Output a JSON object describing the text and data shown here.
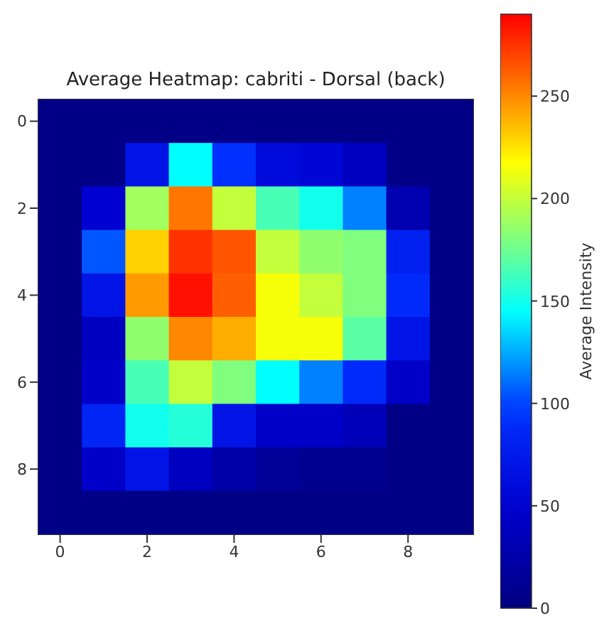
{
  "chart_data": {
    "type": "heatmap",
    "title": "Average Heatmap: cabriti - Dorsal (back)",
    "clabel": "Average Intensity",
    "categories": [
      "0",
      null,
      "2",
      null,
      "4",
      null,
      "6",
      null,
      "8",
      null
    ],
    "y_categories": [
      "0",
      null,
      "2",
      null,
      "4",
      null,
      "6",
      null,
      "8",
      null
    ],
    "cells": [
      [
        5,
        5,
        5,
        5,
        5,
        5,
        5,
        5,
        5,
        5
      ],
      [
        5,
        5,
        70,
        145,
        95,
        60,
        55,
        40,
        5,
        5
      ],
      [
        5,
        50,
        190,
        255,
        200,
        165,
        150,
        115,
        30,
        5
      ],
      [
        5,
        105,
        230,
        275,
        265,
        200,
        185,
        180,
        80,
        5
      ],
      [
        5,
        70,
        245,
        285,
        262,
        215,
        200,
        180,
        90,
        5
      ],
      [
        5,
        40,
        185,
        250,
        240,
        215,
        215,
        170,
        70,
        5
      ],
      [
        5,
        45,
        165,
        200,
        180,
        145,
        115,
        90,
        45,
        5
      ],
      [
        5,
        85,
        150,
        155,
        70,
        45,
        45,
        35,
        5,
        5
      ],
      [
        5,
        45,
        70,
        40,
        25,
        15,
        10,
        10,
        5,
        5
      ],
      [
        5,
        5,
        5,
        5,
        5,
        5,
        5,
        5,
        5,
        5
      ]
    ],
    "clim": [
      0,
      290
    ],
    "cticks": [
      0,
      50,
      100,
      150,
      200,
      250
    ]
  }
}
